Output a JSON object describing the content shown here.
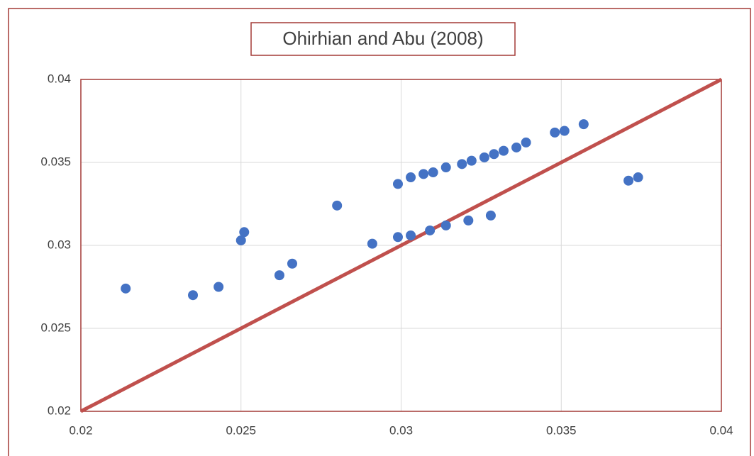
{
  "chart_data": {
    "type": "scatter",
    "title": "Ohirhian and Abu (2008)",
    "xlim": [
      0.02,
      0.04
    ],
    "ylim": [
      0.02,
      0.04
    ],
    "xticks": [
      0.02,
      0.025,
      0.03,
      0.035,
      0.04
    ],
    "yticks": [
      0.02,
      0.025,
      0.03,
      0.035,
      0.04
    ],
    "grid": true,
    "series": [
      {
        "type": "scatter",
        "color": "#4472c4",
        "x": [
          0.0214,
          0.0235,
          0.0243,
          0.025,
          0.0251,
          0.0262,
          0.0266,
          0.028,
          0.0291,
          0.0299,
          0.0299,
          0.0303,
          0.0303,
          0.0307,
          0.0309,
          0.031,
          0.0314,
          0.0314,
          0.0319,
          0.0322,
          0.0321,
          0.0326,
          0.0328,
          0.0329,
          0.0332,
          0.0336,
          0.0339,
          0.0348,
          0.0351,
          0.0357,
          0.0371,
          0.0374
        ],
        "values": [
          0.0274,
          0.027,
          0.0275,
          0.0303,
          0.0308,
          0.0282,
          0.0289,
          0.0324,
          0.0301,
          0.0337,
          0.0305,
          0.0341,
          0.0306,
          0.0343,
          0.0309,
          0.0344,
          0.0312,
          0.0347,
          0.0349,
          0.0351,
          0.0315,
          0.0353,
          0.0318,
          0.0355,
          0.0357,
          0.0359,
          0.0362,
          0.0368,
          0.0369,
          0.0373,
          0.0339,
          0.0341
        ]
      },
      {
        "type": "line",
        "color": "#c0504d",
        "x": [
          0.02,
          0.04
        ],
        "values": [
          0.02,
          0.04
        ]
      }
    ]
  }
}
